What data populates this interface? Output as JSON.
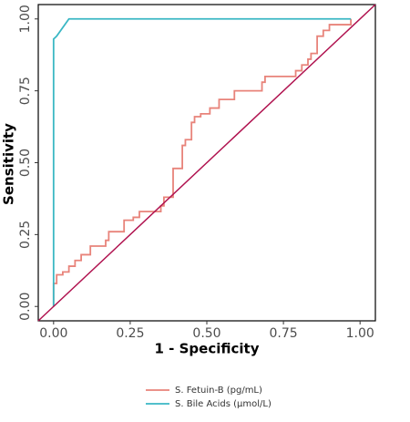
{
  "chart_data": {
    "type": "line",
    "x_label": "1 - Specificity",
    "y_label": "Sensitivity",
    "xlim": [
      -0.05,
      1.05
    ],
    "ylim": [
      -0.05,
      1.05
    ],
    "xticks": [
      {
        "value": 0,
        "label": "0.00"
      },
      {
        "value": 0.25,
        "label": "0.25"
      },
      {
        "value": 0.5,
        "label": "0.50"
      },
      {
        "value": 0.75,
        "label": "0.75"
      },
      {
        "value": 1,
        "label": "1.00"
      }
    ],
    "yticks": [
      {
        "value": 0,
        "label": "0.00"
      },
      {
        "value": 0.25,
        "label": "0.25"
      },
      {
        "value": 0.5,
        "label": "0.50"
      },
      {
        "value": 0.75,
        "label": "0.75"
      },
      {
        "value": 1,
        "label": "1.00"
      }
    ],
    "grid": false,
    "series": [
      {
        "name": "S. Fetuin-B (pg/mL)",
        "color": "#e8837a",
        "x": [
          0,
          0,
          0.01,
          0.01,
          0.03,
          0.03,
          0.05,
          0.05,
          0.07,
          0.07,
          0.09,
          0.09,
          0.12,
          0.12,
          0.17,
          0.17,
          0.18,
          0.18,
          0.23,
          0.23,
          0.26,
          0.26,
          0.28,
          0.28,
          0.35,
          0.35,
          0.36,
          0.36,
          0.39,
          0.39,
          0.42,
          0.42,
          0.43,
          0.43,
          0.45,
          0.45,
          0.46,
          0.46,
          0.48,
          0.48,
          0.51,
          0.51,
          0.54,
          0.54,
          0.59,
          0.59,
          0.68,
          0.68,
          0.69,
          0.69,
          0.79,
          0.79,
          0.81,
          0.81,
          0.83,
          0.83,
          0.84,
          0.84,
          0.86,
          0.86,
          0.88,
          0.88,
          0.9,
          0.9,
          0.91,
          0.91,
          0.97,
          0.97
        ],
        "values": [
          0,
          0.08,
          0.08,
          0.11,
          0.11,
          0.12,
          0.12,
          0.14,
          0.14,
          0.16,
          0.16,
          0.18,
          0.18,
          0.21,
          0.21,
          0.23,
          0.23,
          0.26,
          0.26,
          0.3,
          0.3,
          0.31,
          0.31,
          0.33,
          0.33,
          0.35,
          0.35,
          0.38,
          0.38,
          0.48,
          0.48,
          0.56,
          0.56,
          0.58,
          0.58,
          0.64,
          0.64,
          0.66,
          0.66,
          0.67,
          0.67,
          0.69,
          0.69,
          0.72,
          0.72,
          0.75,
          0.75,
          0.78,
          0.78,
          0.8,
          0.8,
          0.82,
          0.82,
          0.84,
          0.84,
          0.86,
          0.86,
          0.88,
          0.88,
          0.94,
          0.94,
          0.96,
          0.96,
          0.98,
          0.98,
          0.98,
          0.98,
          1
        ]
      },
      {
        "name": "S. Bile Acids (μmol/L)",
        "color": "#3ab7c4",
        "x": [
          0,
          0,
          0.01,
          0.05,
          0.97
        ],
        "values": [
          0,
          0.93,
          0.94,
          1,
          1
        ]
      }
    ],
    "legend": "bottom"
  }
}
